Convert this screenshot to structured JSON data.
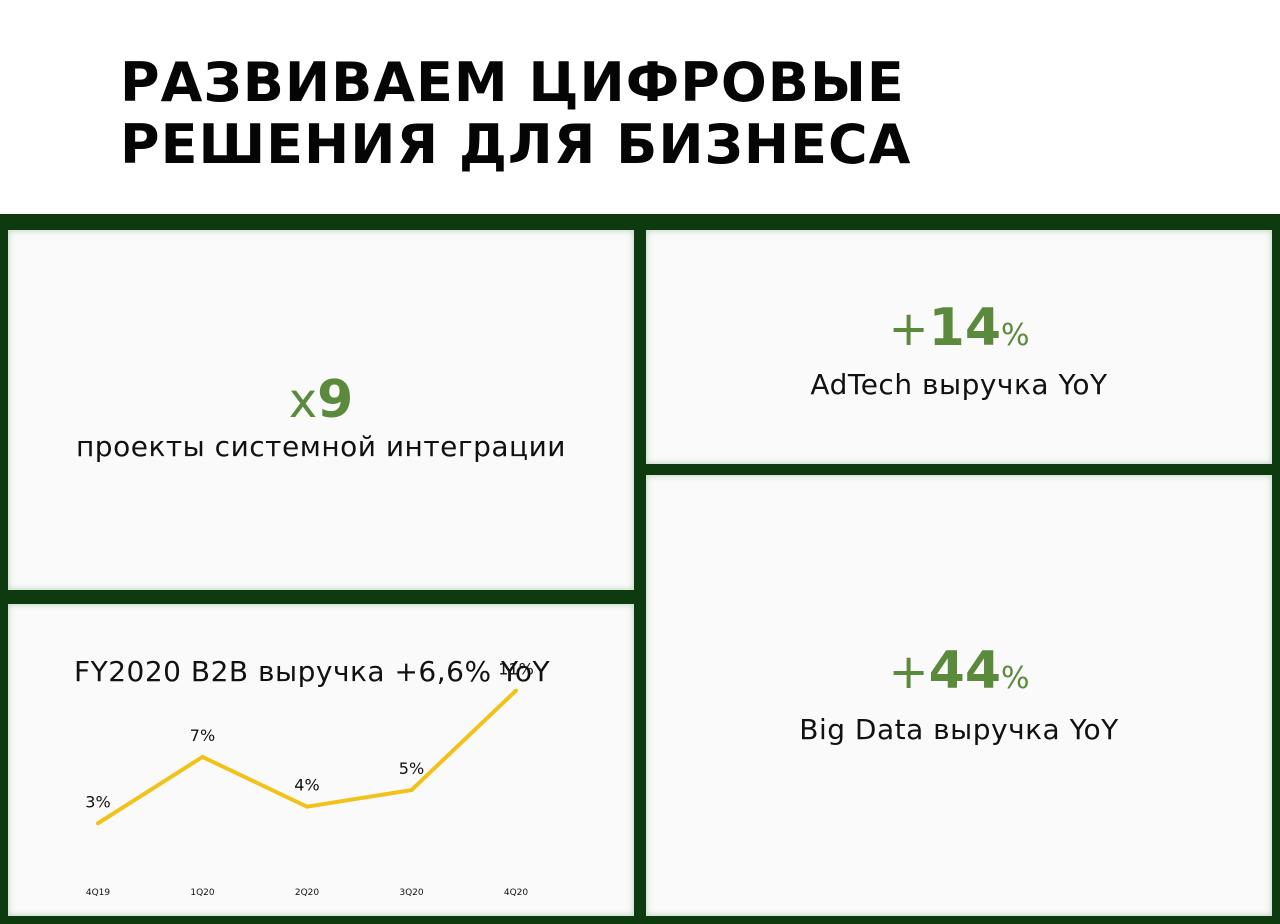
{
  "title": {
    "line1": "РАЗВИВАЕМ ЦИФРОВЫЕ",
    "line2": "РЕШЕНИЯ ДЛЯ БИЗНЕСА"
  },
  "colors": {
    "accent_green": "#5b8a3c",
    "frame_green": "#0e3a10",
    "line_yellow": "#f2c21b"
  },
  "integration": {
    "prefix": "x",
    "value": "9",
    "caption": "проекты системной интеграции"
  },
  "adtech": {
    "sign": "+",
    "value": "14",
    "unit": "%",
    "caption": "AdTech выручка YoY"
  },
  "bigdata": {
    "sign": "+",
    "value": "44",
    "unit": "%",
    "caption": "Big Data выручка YoY"
  },
  "b2b": {
    "title": "FY2020 B2B выручка +6,6% YoY"
  },
  "chart_data": {
    "type": "line",
    "title": "FY2020 B2B выручка +6,6% YoY",
    "categories": [
      "4Q19",
      "1Q20",
      "2Q20",
      "3Q20",
      "4Q20"
    ],
    "series": [
      {
        "values": [
          3,
          7,
          4,
          5,
          11
        ],
        "labels": [
          "3%",
          "7%",
          "4%",
          "5%",
          "11%"
        ]
      }
    ],
    "xlabel": "",
    "ylabel": "",
    "grid": false,
    "ylim": [
      0,
      12
    ]
  }
}
